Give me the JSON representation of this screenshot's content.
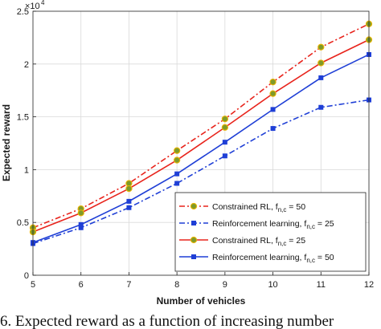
{
  "chart_data": {
    "type": "line",
    "xlabel": "Number of vehicles",
    "ylabel": "Expected reward",
    "exponent_base": "×10",
    "exponent_power": "4",
    "x": [
      5,
      6,
      7,
      8,
      9,
      10,
      11,
      12
    ],
    "xlim": [
      5,
      12
    ],
    "ylim": [
      0,
      2.5
    ],
    "x_ticks": [
      "5",
      "6",
      "7",
      "8",
      "9",
      "10",
      "11",
      "12"
    ],
    "y_ticks": [
      "0",
      "0.5",
      "1",
      "1.5",
      "2",
      "2.5"
    ],
    "y_tick_values": [
      0,
      0.5,
      1,
      1.5,
      2,
      2.5
    ],
    "grid": true,
    "legend_position": "lower-right",
    "series": [
      {
        "name_main": "Constrained RL, f",
        "name_sub": "n,c",
        "name_tail": " = 50",
        "color": "#e8241c",
        "dash": "dashdot",
        "marker": "circle",
        "marker_fill": "#7f9a2a",
        "values": [
          0.45,
          0.63,
          0.87,
          1.18,
          1.48,
          1.83,
          2.16,
          2.38
        ]
      },
      {
        "name_main": "Reinforcement learning, f",
        "name_sub": "n,c",
        "name_tail": " = 25",
        "color": "#1f3fd6",
        "dash": "dashdot",
        "marker": "square",
        "marker_fill": "#1f3fd6",
        "values": [
          0.3,
          0.45,
          0.64,
          0.87,
          1.13,
          1.39,
          1.59,
          1.66
        ]
      },
      {
        "name_main": "Constrained RL, f",
        "name_sub": "n,c",
        "name_tail": " = 25",
        "color": "#e8241c",
        "dash": "solid",
        "marker": "circle",
        "marker_fill": "#7f9a2a",
        "values": [
          0.41,
          0.59,
          0.82,
          1.09,
          1.4,
          1.72,
          2.01,
          2.23
        ]
      },
      {
        "name_main": "Reinforcement learning, f",
        "name_sub": "n,c",
        "name_tail": " = 50",
        "color": "#1f3fd6",
        "dash": "solid",
        "marker": "square",
        "marker_fill": "#1f3fd6",
        "values": [
          0.31,
          0.48,
          0.7,
          0.96,
          1.26,
          1.57,
          1.87,
          2.09
        ]
      }
    ]
  },
  "caption": "6. Expected reward as a function of increasing number"
}
